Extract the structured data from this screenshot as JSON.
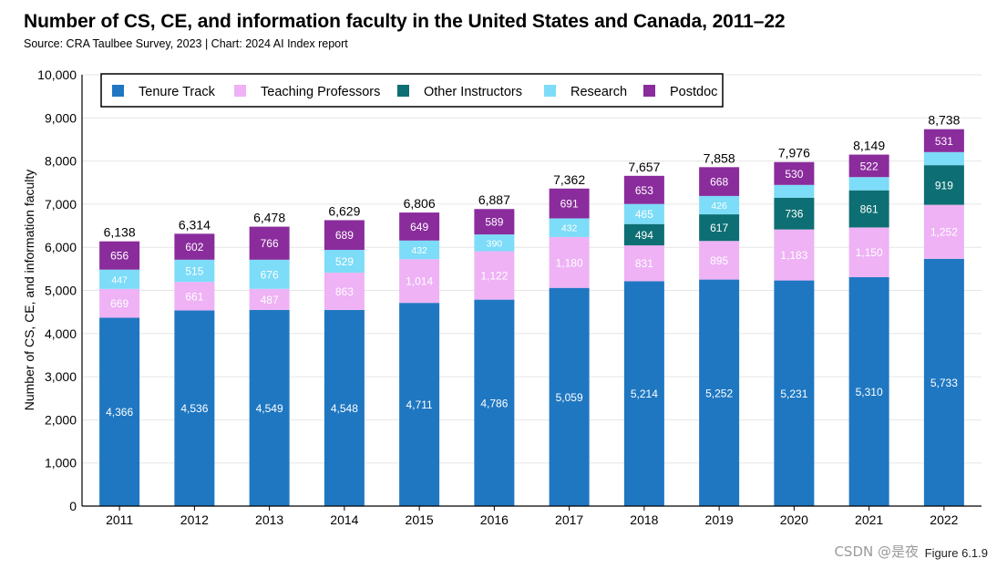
{
  "chart_data": {
    "type": "bar",
    "stacked": true,
    "title": "Number of CS, CE, and information faculty in the United States and Canada, 2011–22",
    "subtitle": "Source: CRA Taulbee Survey, 2023 | Chart: 2024 AI Index report",
    "xlabel": "",
    "ylabel": "Number of CS, CE, and information faculty",
    "ylim": [
      0,
      10000
    ],
    "yticks": [
      0,
      1000,
      2000,
      3000,
      4000,
      5000,
      6000,
      7000,
      8000,
      9000,
      10000
    ],
    "ytick_labels": [
      "0",
      "1,000",
      "2,000",
      "3,000",
      "4,000",
      "5,000",
      "6,000",
      "7,000",
      "8,000",
      "9,000",
      "10,000"
    ],
    "grid": true,
    "legend_position": "top-left",
    "categories": [
      "2011",
      "2012",
      "2013",
      "2014",
      "2015",
      "2016",
      "2017",
      "2018",
      "2019",
      "2020",
      "2021",
      "2022"
    ],
    "series": [
      {
        "name": "Tenure Track",
        "color": "#1f77c1",
        "values": [
          4366,
          4536,
          4549,
          4548,
          4711,
          4786,
          5059,
          5214,
          5252,
          5231,
          5310,
          5733
        ],
        "labels": [
          "4,366",
          "4,536",
          "4,549",
          "4,548",
          "4,711",
          "4,786",
          "5,059",
          "5,214",
          "5,252",
          "5,231",
          "5,310",
          "5,733"
        ]
      },
      {
        "name": "Teaching Professors",
        "color": "#eeb2f5",
        "values": [
          669,
          661,
          487,
          863,
          1014,
          1122,
          1180,
          831,
          895,
          1183,
          1150,
          1252
        ],
        "labels": [
          "669",
          "661",
          "487",
          "863",
          "1,014",
          "1,122",
          "1,180",
          "831",
          "895",
          "1,183",
          "1,150",
          "1,252"
        ]
      },
      {
        "name": "Other Instructors",
        "color": "#0d6f73",
        "values": [
          0,
          0,
          0,
          0,
          0,
          0,
          0,
          494,
          617,
          736,
          861,
          919
        ],
        "labels": [
          "",
          "",
          "",
          "",
          "",
          "",
          "",
          "494",
          "617",
          "736",
          "861",
          "919"
        ]
      },
      {
        "name": "Research",
        "color": "#7ddcf8",
        "values": [
          447,
          515,
          676,
          529,
          432,
          390,
          432,
          465,
          426,
          296,
          306,
          303
        ],
        "labels": [
          "447",
          "515",
          "676",
          "529",
          "432",
          "390",
          "432",
          "465",
          "426",
          "",
          "",
          ""
        ]
      },
      {
        "name": "Postdoc",
        "color": "#8a2c9c",
        "values": [
          656,
          602,
          766,
          689,
          649,
          589,
          691,
          653,
          668,
          530,
          522,
          531
        ],
        "labels": [
          "656",
          "602",
          "766",
          "689",
          "649",
          "589",
          "691",
          "653",
          "668",
          "530",
          "522",
          "531"
        ]
      }
    ],
    "totals": [
      6138,
      6314,
      6478,
      6629,
      6806,
      6887,
      7362,
      7657,
      7858,
      7976,
      8149,
      8738
    ],
    "total_labels": [
      "6,138",
      "6,314",
      "6,478",
      "6,629",
      "6,806",
      "6,887",
      "7,362",
      "7,657",
      "7,858",
      "7,976",
      "8,149",
      "8,738"
    ]
  },
  "figure_label": "Figure 6.1.9",
  "watermark": "CSDN @是夜"
}
